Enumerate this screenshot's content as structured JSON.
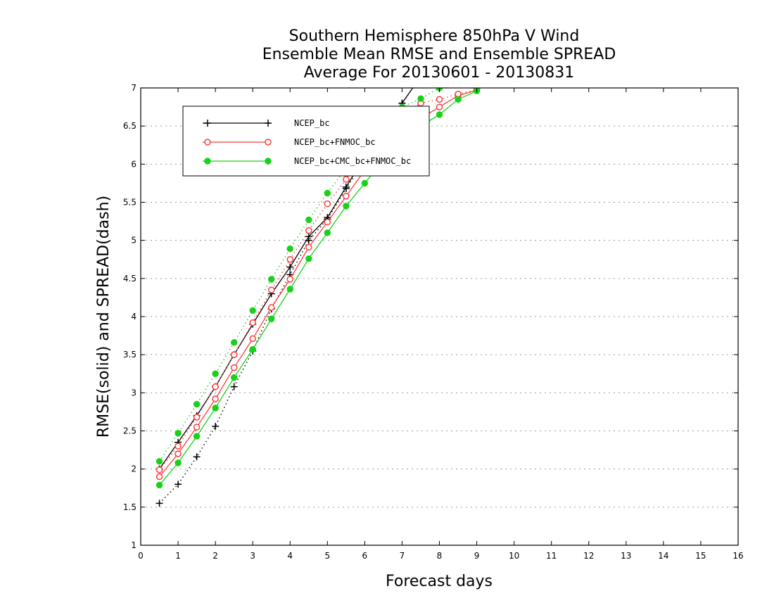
{
  "chart_data": {
    "type": "line",
    "title_lines": [
      "Southern Hemisphere 850hPa V Wind",
      "Ensemble Mean RMSE and Ensemble SPREAD",
      "Average For 20130601 - 20130831"
    ],
    "xlabel": "Forecast days",
    "ylabel": "RMSE(solid) and SPREAD(dash)",
    "xlim": [
      0,
      16
    ],
    "ylim": [
      1,
      7
    ],
    "x_ticks": [
      "0",
      "1",
      "2",
      "3",
      "4",
      "5",
      "6",
      "7",
      "8",
      "9",
      "10",
      "11",
      "12",
      "13",
      "14",
      "15",
      "16"
    ],
    "y_ticks": [
      "1",
      "1.5",
      "2",
      "2.5",
      "3",
      "3.5",
      "4",
      "4.5",
      "5",
      "5.5",
      "6",
      "6.5",
      "7"
    ],
    "grid": "horizontal dotted",
    "legend_placement": "top-left",
    "series": [
      {
        "name": "NCEP_bc",
        "color": "#000000",
        "marker": "plus",
        "rmse": [
          [
            0.5,
            2.0
          ],
          [
            1,
            2.35
          ],
          [
            1.5,
            2.7
          ],
          [
            2,
            3.08
          ],
          [
            2.5,
            3.5
          ],
          [
            3,
            3.9
          ],
          [
            3.5,
            4.3
          ],
          [
            4,
            4.65
          ],
          [
            4.5,
            5.05
          ],
          [
            5,
            5.3
          ],
          [
            5.5,
            5.7
          ],
          [
            6,
            6.1
          ],
          [
            6.5,
            6.45
          ],
          [
            7,
            6.8
          ],
          [
            7.5,
            7.15
          ]
        ],
        "spread": [
          [
            0.5,
            1.55
          ],
          [
            1,
            1.8
          ],
          [
            1.5,
            2.16
          ],
          [
            2,
            2.56
          ],
          [
            2.5,
            3.08
          ],
          [
            3,
            3.55
          ],
          [
            3.5,
            4.1
          ],
          [
            4,
            4.55
          ],
          [
            4.5,
            5.0
          ],
          [
            5,
            5.28
          ],
          [
            5.5,
            5.68
          ],
          [
            6,
            6.05
          ],
          [
            6.5,
            6.45
          ],
          [
            7,
            6.8
          ],
          [
            7.5,
            7.15
          ]
        ]
      },
      {
        "name": "NCEP_bc+FNMOC_bc",
        "color": "#ff3b3b",
        "marker": "open-circle",
        "rmse": [
          [
            0.5,
            1.9
          ],
          [
            1,
            2.2
          ],
          [
            1.5,
            2.55
          ],
          [
            2,
            2.92
          ],
          [
            2.5,
            3.33
          ],
          [
            3,
            3.71
          ],
          [
            3.5,
            4.12
          ],
          [
            4,
            4.49
          ],
          [
            4.5,
            4.91
          ],
          [
            5,
            5.24
          ],
          [
            5.5,
            5.58
          ],
          [
            6,
            5.92
          ],
          [
            6.5,
            6.22
          ],
          [
            7,
            6.5
          ],
          [
            7.5,
            6.6
          ],
          [
            8,
            6.75
          ],
          [
            8.5,
            6.9
          ],
          [
            9,
            6.97
          ]
        ],
        "spread": [
          [
            0.5,
            1.99
          ],
          [
            1,
            2.3
          ],
          [
            1.5,
            2.68
          ],
          [
            2,
            3.08
          ],
          [
            2.5,
            3.5
          ],
          [
            3,
            3.92
          ],
          [
            3.5,
            4.35
          ],
          [
            4,
            4.75
          ],
          [
            4.5,
            5.13
          ],
          [
            5,
            5.48
          ],
          [
            5.5,
            5.8
          ],
          [
            6,
            6.12
          ],
          [
            6.5,
            6.4
          ],
          [
            7,
            6.63
          ],
          [
            7.5,
            6.8
          ],
          [
            8,
            6.85
          ],
          [
            8.5,
            6.92
          ],
          [
            9,
            6.98
          ]
        ]
      },
      {
        "name": "NCEP_bc+CMC_bc+FNMOC_bc",
        "color": "#17d217",
        "marker": "filled-circle",
        "rmse": [
          [
            0.5,
            1.79
          ],
          [
            1,
            2.08
          ],
          [
            1.5,
            2.43
          ],
          [
            2,
            2.8
          ],
          [
            2.5,
            3.2
          ],
          [
            3,
            3.57
          ],
          [
            3.5,
            3.97
          ],
          [
            4,
            4.36
          ],
          [
            4.5,
            4.76
          ],
          [
            5,
            5.1
          ],
          [
            5.5,
            5.45
          ],
          [
            6,
            5.75
          ],
          [
            6.5,
            6.05
          ],
          [
            7,
            6.3
          ],
          [
            7.5,
            6.5
          ],
          [
            8,
            6.65
          ],
          [
            8.5,
            6.85
          ],
          [
            9,
            6.96
          ]
        ],
        "spread": [
          [
            0.5,
            2.1
          ],
          [
            1,
            2.47
          ],
          [
            1.5,
            2.85
          ],
          [
            2,
            3.25
          ],
          [
            2.5,
            3.66
          ],
          [
            3,
            4.08
          ],
          [
            3.5,
            4.49
          ],
          [
            4,
            4.89
          ],
          [
            4.5,
            5.27
          ],
          [
            5,
            5.62
          ],
          [
            5.5,
            5.95
          ],
          [
            6,
            6.25
          ],
          [
            6.5,
            6.52
          ],
          [
            7,
            6.75
          ],
          [
            7.5,
            6.86
          ],
          [
            8,
            7.0
          ],
          [
            8.5,
            7.05
          ]
        ]
      }
    ]
  }
}
